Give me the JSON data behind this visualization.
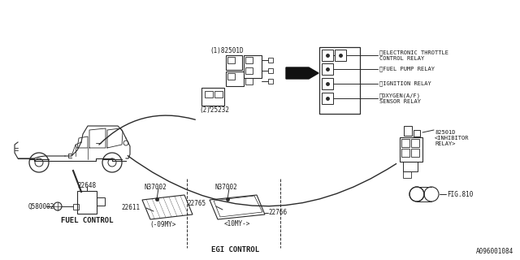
{
  "bg_color": "#ffffff",
  "line_color": "#2a2a2a",
  "text_color": "#1a1a1a",
  "fig_number": "A096001084",
  "part_labels": {
    "relay_main": "82501D",
    "part_25232": "25232",
    "part_22648": "22648",
    "part_Q580002": "Q580002",
    "part_N37002a": "N37002",
    "part_22611": "22611",
    "part_N37002b": "N37002",
    "part_22765": "22765",
    "part_22766": "22766",
    "part_inhibitor": "82501D\n<INHIBITOR\nRELAY>",
    "fig810": "FIG.810"
  },
  "relay_detail_labels": [
    [
      "①",
      "ELECTRONIC THROTTLE\nCONTROL RELAY"
    ],
    [
      "①",
      "FUEL PUMP RELAY"
    ],
    [
      "②",
      "IGNITION RELAY"
    ],
    [
      "②",
      "OXYGEN(A/F)\nSENSOR RELAY"
    ]
  ],
  "section_fuel": "FUEL CONTROL",
  "section_egi": "EGI CONTROL",
  "minus09my": "(-09MY>",
  "plus10my": "<10MY->",
  "circle1": "(1)",
  "circle2": "(2)"
}
